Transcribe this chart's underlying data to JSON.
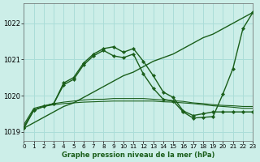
{
  "title": "Graphe pression niveau de la mer (hPa)",
  "background_color": "#cceee8",
  "grid_color": "#aaddd8",
  "line_color": "#1a5e1a",
  "xlim": [
    0,
    23
  ],
  "ylim": [
    1018.75,
    1022.55
  ],
  "yticks": [
    1019,
    1020,
    1021,
    1022
  ],
  "xticks": [
    0,
    1,
    2,
    3,
    4,
    5,
    6,
    7,
    8,
    9,
    10,
    11,
    12,
    13,
    14,
    15,
    16,
    17,
    18,
    19,
    20,
    21,
    22,
    23
  ],
  "series": [
    {
      "x": [
        0,
        1,
        2,
        3,
        4,
        5,
        6,
        7,
        8,
        9,
        10,
        11,
        12,
        13,
        14,
        15,
        16,
        17,
        18,
        19,
        20,
        21,
        22,
        23
      ],
      "y": [
        1019.1,
        1019.25,
        1019.4,
        1019.55,
        1019.7,
        1019.8,
        1019.95,
        1020.1,
        1020.25,
        1020.4,
        1020.55,
        1020.65,
        1020.8,
        1020.95,
        1021.05,
        1021.15,
        1021.3,
        1021.45,
        1021.6,
        1021.7,
        1021.85,
        1022.0,
        1022.15,
        1022.3
      ],
      "marker": null,
      "linewidth": 1.0
    },
    {
      "x": [
        0,
        1,
        2,
        3,
        4,
        5,
        6,
        7,
        8,
        9,
        10,
        11,
        12,
        13,
        14,
        15,
        16,
        17,
        18,
        19,
        20,
        21,
        22,
        23
      ],
      "y": [
        1019.15,
        1019.6,
        1019.7,
        1019.75,
        1019.78,
        1019.8,
        1019.82,
        1019.83,
        1019.84,
        1019.85,
        1019.85,
        1019.85,
        1019.85,
        1019.85,
        1019.83,
        1019.82,
        1019.8,
        1019.78,
        1019.75,
        1019.72,
        1019.7,
        1019.68,
        1019.65,
        1019.65
      ],
      "marker": null,
      "linewidth": 0.8
    },
    {
      "x": [
        0,
        1,
        2,
        3,
        4,
        5,
        6,
        7,
        8,
        9,
        10,
        11,
        12,
        13,
        14,
        15,
        16,
        17,
        18,
        19,
        20,
        21,
        22,
        23
      ],
      "y": [
        1019.2,
        1019.65,
        1019.72,
        1019.78,
        1019.82,
        1019.85,
        1019.88,
        1019.9,
        1019.9,
        1019.92,
        1019.92,
        1019.92,
        1019.92,
        1019.9,
        1019.88,
        1019.86,
        1019.84,
        1019.8,
        1019.78,
        1019.75,
        1019.73,
        1019.72,
        1019.7,
        1019.7
      ],
      "marker": null,
      "linewidth": 0.8
    },
    {
      "x": [
        0,
        1,
        2,
        3,
        4,
        5,
        6,
        7,
        8,
        9,
        10,
        11,
        12,
        13,
        14,
        15,
        16,
        17,
        18,
        19,
        20,
        21,
        22,
        23
      ],
      "y": [
        1019.1,
        1019.6,
        1019.7,
        1019.78,
        1020.35,
        1020.5,
        1020.9,
        1021.15,
        1021.3,
        1021.35,
        1021.2,
        1021.3,
        1020.95,
        1020.55,
        1020.1,
        1019.95,
        1019.58,
        1019.45,
        1019.5,
        1019.55,
        1019.55,
        1019.55,
        1019.55,
        1019.55
      ],
      "marker": "D",
      "linewidth": 1.0
    },
    {
      "x": [
        0,
        1,
        2,
        3,
        4,
        5,
        6,
        7,
        8,
        9,
        10,
        11,
        12,
        13,
        14,
        15,
        16,
        17,
        18,
        19,
        20,
        21,
        22,
        23
      ],
      "y": [
        1019.1,
        1019.6,
        1019.7,
        1019.78,
        1020.3,
        1020.45,
        1020.85,
        1021.1,
        1021.25,
        1021.1,
        1021.05,
        1021.15,
        1020.6,
        1020.2,
        1019.9,
        1019.85,
        1019.55,
        1019.38,
        1019.4,
        1019.42,
        1020.05,
        1020.75,
        1021.85,
        1022.3
      ],
      "marker": "D",
      "linewidth": 1.0
    }
  ]
}
